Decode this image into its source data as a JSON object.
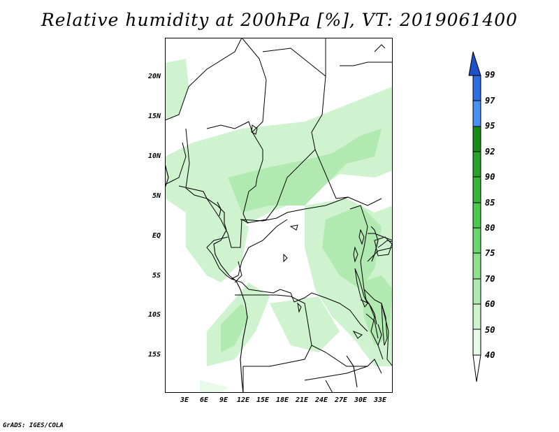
{
  "title": "Relative humidity at 200hPa [%], VT: 2019061400",
  "credit": "GrADS: IGES/COLA",
  "map": {
    "region": "Central Africa",
    "lat_range": [
      -20,
      24
    ],
    "lon_range": [
      0,
      35
    ],
    "lat_labels": [
      {
        "lat": 20,
        "text": "20N"
      },
      {
        "lat": 15,
        "text": "15N"
      },
      {
        "lat": 10,
        "text": "10N"
      },
      {
        "lat": 5,
        "text": "5N"
      },
      {
        "lat": 0,
        "text": "EQ"
      },
      {
        "lat": -5,
        "text": "5S"
      },
      {
        "lat": -10,
        "text": "10S"
      },
      {
        "lat": -15,
        "text": "15S"
      }
    ],
    "lon_labels": [
      {
        "lon": 3,
        "text": "3E"
      },
      {
        "lon": 6,
        "text": "6E"
      },
      {
        "lon": 9,
        "text": "9E"
      },
      {
        "lon": 12,
        "text": "12E"
      },
      {
        "lon": 15,
        "text": "15E"
      },
      {
        "lon": 18,
        "text": "18E"
      },
      {
        "lon": 21,
        "text": "21E"
      },
      {
        "lon": 24,
        "text": "24E"
      },
      {
        "lon": 27,
        "text": "27E"
      },
      {
        "lon": 30,
        "text": "30E"
      },
      {
        "lon": 33,
        "text": "33E"
      }
    ]
  },
  "colorbar": {
    "levels": [
      "99",
      "97",
      "95",
      "92",
      "90",
      "85",
      "80",
      "75",
      "70",
      "60",
      "50",
      "40"
    ],
    "colors": {
      "above_99": "#1e50c8",
      "97_99": "#2f6ee0",
      "95_97": "#4a90f0",
      "92_95": "#1a8a1a",
      "90_92": "#2ca02c",
      "85_90": "#3cb43c",
      "80_85": "#50c850",
      "75_80": "#6cd46c",
      "70_75": "#8ee08e",
      "60_70": "#b0eab0",
      "50_60": "#cff3cf",
      "40_50": "#e8fae8",
      "below_40": "#ffffff"
    }
  }
}
